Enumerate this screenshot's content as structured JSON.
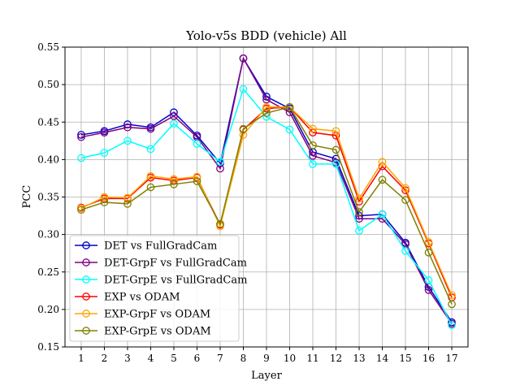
{
  "chart_data": {
    "type": "line",
    "title": "Yolo-v5s BDD (vehicle) All",
    "xlabel": "Layer",
    "ylabel": "PCC",
    "x": [
      1,
      2,
      3,
      4,
      5,
      6,
      7,
      8,
      9,
      10,
      11,
      12,
      13,
      14,
      15,
      16,
      17
    ],
    "ylim": [
      0.15,
      0.55
    ],
    "yticks": [
      "0.15",
      "0.20",
      "0.25",
      "0.30",
      "0.35",
      "0.40",
      "0.45",
      "0.50",
      "0.55"
    ],
    "xticks": [
      "1",
      "2",
      "3",
      "4",
      "5",
      "6",
      "7",
      "8",
      "9",
      "10",
      "11",
      "12",
      "13",
      "14",
      "15",
      "16",
      "17"
    ],
    "grid": true,
    "legend_position": "lower-left",
    "series": [
      {
        "name": "DET vs FullGradCam",
        "color": "#0000cc",
        "values": [
          0.433,
          0.438,
          0.447,
          0.443,
          0.463,
          0.432,
          0.395,
          0.535,
          0.484,
          0.468,
          0.41,
          0.401,
          0.325,
          0.327,
          0.289,
          0.23,
          0.183
        ]
      },
      {
        "name": "DET-GrpF vs FullGradCam",
        "color": "#800080",
        "values": [
          0.43,
          0.436,
          0.443,
          0.441,
          0.458,
          0.43,
          0.388,
          0.535,
          0.48,
          0.463,
          0.405,
          0.396,
          0.321,
          0.321,
          0.287,
          0.226,
          0.181
        ]
      },
      {
        "name": "DET-GrpE vs FullGradCam",
        "color": "#00ffff",
        "values": [
          0.402,
          0.409,
          0.425,
          0.414,
          0.448,
          0.421,
          0.397,
          0.494,
          0.457,
          0.44,
          0.394,
          0.394,
          0.305,
          0.327,
          0.278,
          0.239,
          0.179
        ]
      },
      {
        "name": "EXP vs ODAM",
        "color": "#ff0000",
        "values": [
          0.336,
          0.348,
          0.348,
          0.376,
          0.372,
          0.376,
          0.313,
          0.44,
          0.468,
          0.47,
          0.436,
          0.432,
          0.344,
          0.391,
          0.359,
          0.288,
          0.216
        ]
      },
      {
        "name": "EXP-GrpF vs ODAM",
        "color": "#ffa500",
        "values": [
          0.335,
          0.35,
          0.349,
          0.378,
          0.374,
          0.377,
          0.311,
          0.433,
          0.47,
          0.47,
          0.441,
          0.438,
          0.348,
          0.397,
          0.362,
          0.29,
          0.219
        ]
      },
      {
        "name": "EXP-GrpE vs ODAM",
        "color": "#808000",
        "values": [
          0.333,
          0.343,
          0.341,
          0.363,
          0.367,
          0.371,
          0.314,
          0.441,
          0.462,
          0.47,
          0.419,
          0.413,
          0.33,
          0.373,
          0.346,
          0.276,
          0.207
        ]
      }
    ]
  }
}
